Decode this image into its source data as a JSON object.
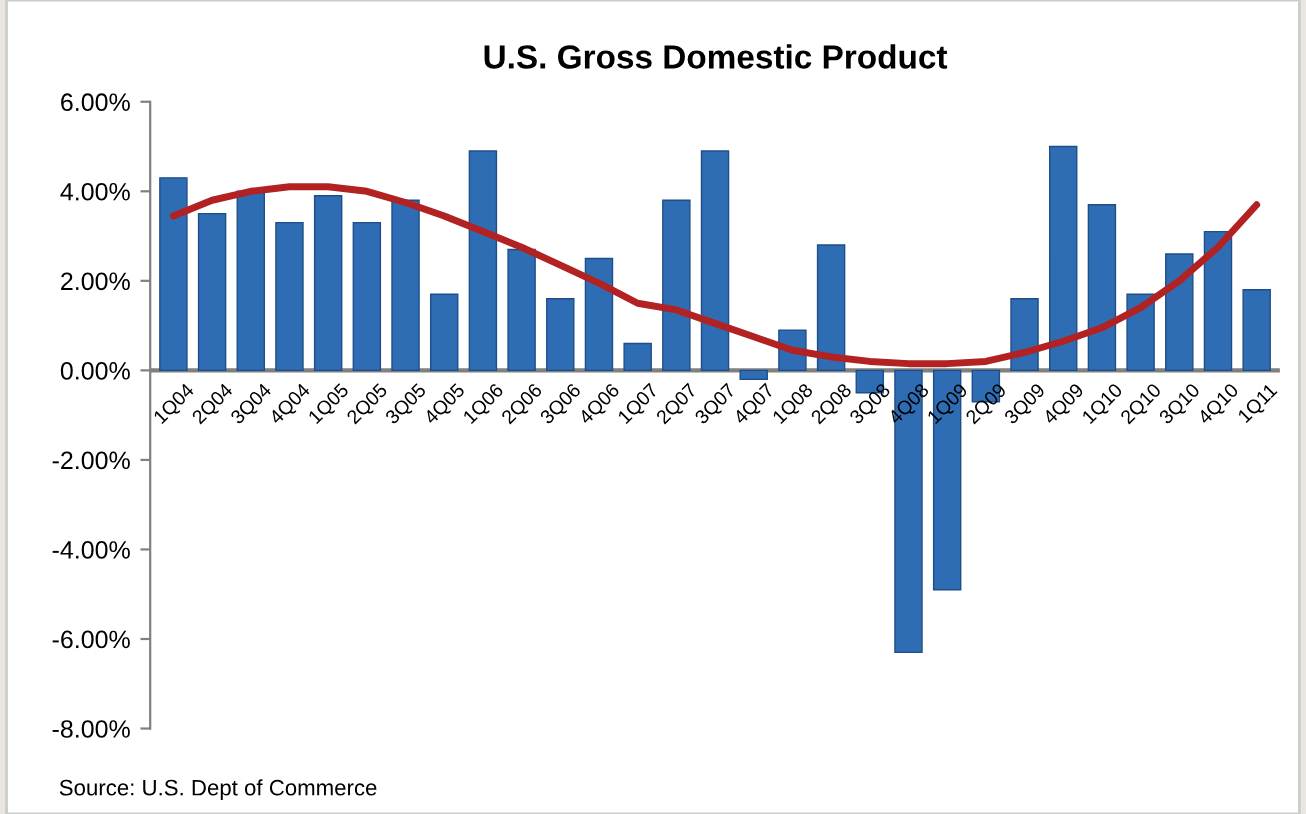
{
  "chart_data": {
    "type": "bar",
    "title": "U.S. Gross Domestic Product",
    "categories": [
      "1Q04",
      "2Q04",
      "3Q04",
      "4Q04",
      "1Q05",
      "2Q05",
      "3Q05",
      "4Q05",
      "1Q06",
      "2Q06",
      "3Q06",
      "4Q06",
      "1Q07",
      "2Q07",
      "3Q07",
      "4Q07",
      "1Q08",
      "2Q08",
      "3Q08",
      "4Q08",
      "1Q09",
      "2Q09",
      "3Q09",
      "4Q09",
      "1Q10",
      "2Q10",
      "3Q10",
      "4Q10",
      "1Q11"
    ],
    "series": [
      {
        "color": "#2e6db4",
        "values": [
          4.3,
          3.5,
          4.0,
          3.3,
          3.9,
          3.3,
          3.8,
          1.7,
          4.9,
          2.7,
          1.6,
          2.5,
          0.6,
          3.8,
          4.9,
          -0.2,
          0.9,
          2.8,
          -0.5,
          -6.3,
          -4.9,
          -0.7,
          1.6,
          5.0,
          3.7,
          1.7,
          2.6,
          3.1,
          1.8
        ]
      },
      {
        "type": "line",
        "color": "#b22222",
        "values": [
          3.45,
          3.8,
          4.0,
          4.1,
          4.1,
          4.0,
          3.75,
          3.45,
          3.1,
          2.75,
          2.35,
          1.95,
          1.5,
          1.35,
          1.05,
          0.75,
          0.45,
          0.3,
          0.2,
          0.15,
          0.15,
          0.2,
          0.4,
          0.65,
          0.95,
          1.4,
          2.0,
          2.75,
          3.7
        ]
      }
    ],
    "ylim": [
      -8,
      6
    ],
    "yticks": [
      {
        "value": -8,
        "label": "-8.00%"
      },
      {
        "value": -6,
        "label": "-6.00%"
      },
      {
        "value": -4,
        "label": "-4.00%"
      },
      {
        "value": -2,
        "label": "-2.00%"
      },
      {
        "value": 0,
        "label": "0.00%"
      },
      {
        "value": 2,
        "label": "2.00%"
      },
      {
        "value": 4,
        "label": "4.00%"
      },
      {
        "value": 6,
        "label": "6.00%"
      }
    ],
    "grid": false,
    "annotations": [
      "Source: U.S. Dept of Commerce"
    ]
  }
}
